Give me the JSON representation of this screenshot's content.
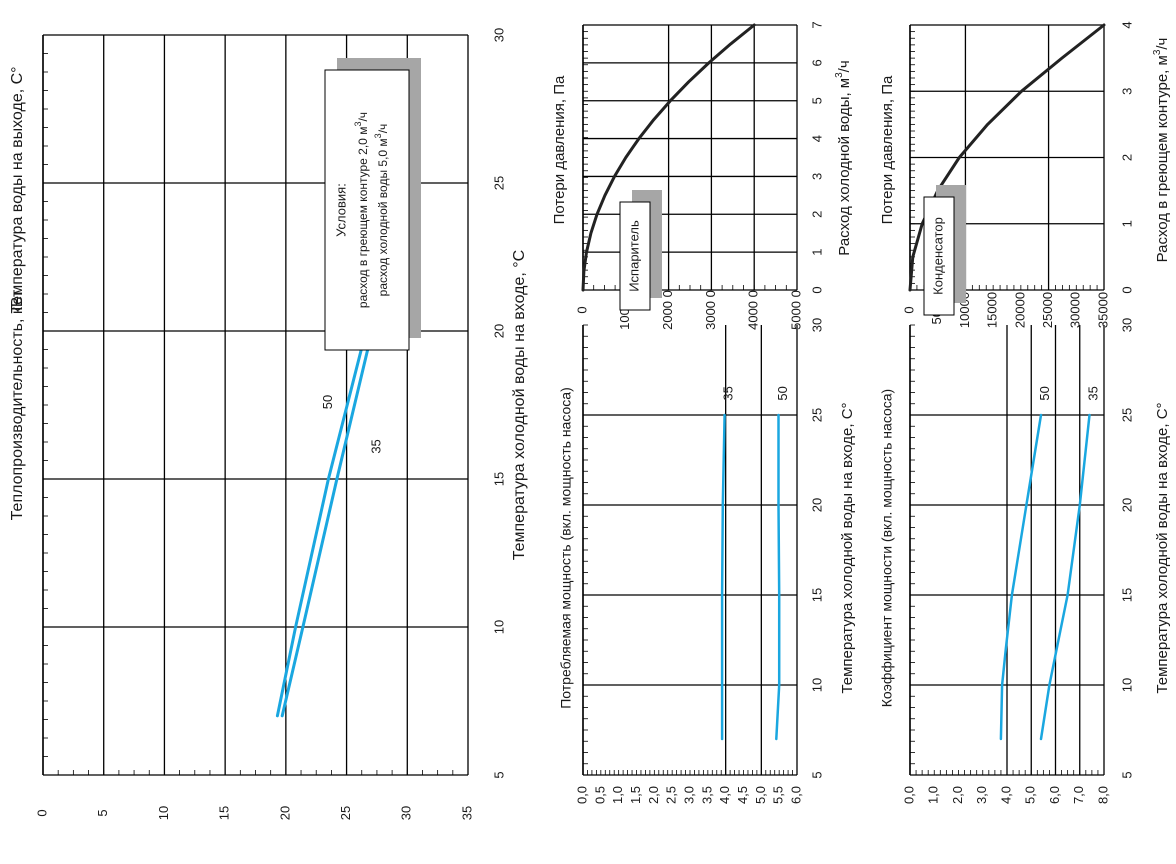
{
  "colors": {
    "line": "#1aa7e0",
    "curve": "#222222",
    "grid": "#000000",
    "shadow": "#a6a6a6"
  },
  "chart_data": [
    {
      "id": "heat",
      "type": "line",
      "xlabel": "Температура холодной воды на входе, °C",
      "ylabel": "Теплопроизводительность, кВт",
      "y2label": "Температура воды на выходе, С°",
      "xlim": [
        5,
        30
      ],
      "ylim": [
        0,
        35
      ],
      "xticks": [
        "5",
        "10",
        "15",
        "20",
        "25",
        "30"
      ],
      "yticks": [
        "0",
        "5",
        "10",
        "15",
        "20",
        "25",
        "30",
        "35"
      ],
      "series": [
        {
          "name": "35",
          "x": [
            7,
            10,
            15,
            20,
            25
          ],
          "y": [
            19.7,
            21.4,
            24.2,
            27.1,
            30.0
          ]
        },
        {
          "name": "50",
          "x": [
            7,
            10,
            15,
            20,
            25
          ],
          "y": [
            19.3,
            20.8,
            23.5,
            26.6,
            30.0
          ]
        }
      ],
      "labels": [
        {
          "text": "35",
          "x": 16.1,
          "y": 27.5
        },
        {
          "text": "50",
          "x": 17.6,
          "y": 23.5
        }
      ],
      "note": {
        "title": "Условия:",
        "line1": "расход в греющем контуре 2,0 м",
        "line1_unit": "/ч",
        "line2": "расход холодной воды 5,0 м",
        "line2_unit": "/ч",
        "sup": "3"
      }
    },
    {
      "id": "power",
      "type": "line",
      "xlabel": "Температура холодной воды на входе, С°",
      "ylabel": "Потребляемая мощность (вкл. мощность насоса)",
      "xlim": [
        5,
        30
      ],
      "ylim": [
        0,
        6
      ],
      "xticks": [
        "5",
        "10",
        "15",
        "20",
        "25",
        "30"
      ],
      "yticks": [
        "0,0",
        "0,5",
        "1,0",
        "1,5",
        "2,0",
        "2,5",
        "3,0",
        "3,5",
        "4,0",
        "4,5",
        "5,0",
        "5,5",
        "6,0"
      ],
      "series": [
        {
          "name": "50",
          "x": [
            7,
            10,
            15,
            20,
            25
          ],
          "y": [
            5.42,
            5.5,
            5.5,
            5.48,
            5.48
          ]
        },
        {
          "name": "35",
          "x": [
            7,
            10,
            15,
            20,
            25
          ],
          "y": [
            3.9,
            3.9,
            3.9,
            3.92,
            3.97
          ]
        }
      ],
      "labels": [
        {
          "text": "50",
          "x": 26.2,
          "y": 5.63
        },
        {
          "text": "35",
          "x": 26.2,
          "y": 4.1
        }
      ]
    },
    {
      "id": "cop",
      "type": "line",
      "xlabel": "Температура холодной воды на входе, С°",
      "ylabel": "Коэффициент мощности (вкл. мощность насоса)",
      "xlim": [
        5,
        30
      ],
      "ylim": [
        0,
        8
      ],
      "xticks": [
        "5",
        "10",
        "15",
        "20",
        "25",
        "30"
      ],
      "yticks": [
        "0,0",
        "1,0",
        "2,0",
        "3,0",
        "4,0",
        "5,0",
        "6,0",
        "7,0",
        "8,0"
      ],
      "series": [
        {
          "name": "35",
          "x": [
            7,
            10,
            13,
            15,
            20,
            25
          ],
          "y": [
            5.4,
            5.75,
            6.2,
            6.5,
            7.0,
            7.4
          ]
        },
        {
          "name": "50",
          "x": [
            7,
            10,
            12,
            15,
            20,
            25
          ],
          "y": [
            3.75,
            3.8,
            3.95,
            4.2,
            4.8,
            5.4
          ]
        }
      ],
      "labels": [
        {
          "text": "35",
          "x": 26.2,
          "y": 7.6
        },
        {
          "text": "50",
          "x": 26.2,
          "y": 5.6
        }
      ]
    },
    {
      "id": "evap",
      "type": "line",
      "xlabel": "Расход холодной воды, м",
      "xlabel_sup": "3",
      "xlabel_tail": "/ч",
      "ylabel": "Потери давления, Па",
      "xlim": [
        0,
        7
      ],
      "ylim": [
        0,
        5000
      ],
      "xticks": [
        "0",
        "1",
        "2",
        "3",
        "4",
        "5",
        "6",
        "7"
      ],
      "yticks": [
        "0",
        "1000 0",
        "2000 0",
        "3000 0",
        "4000 0",
        "5000 0"
      ],
      "series": [
        {
          "name": "",
          "x": [
            0,
            0.5,
            1,
            1.5,
            2,
            2.5,
            3,
            3.5,
            4,
            4.5,
            5,
            5.5,
            6,
            6.5,
            7
          ],
          "y": [
            0,
            20,
            82,
            184,
            327,
            511,
            735,
            1001,
            1307,
            1654,
            2041,
            2470,
            2940,
            3450,
            4000
          ]
        }
      ],
      "box_label": "Испаритель"
    },
    {
      "id": "cond",
      "type": "line",
      "xlabel": "Расход в греющем контуре, м",
      "xlabel_sup": "3",
      "xlabel_tail": "/ч",
      "ylabel": "Потери давления, Па",
      "xlim": [
        0,
        4
      ],
      "ylim": [
        0,
        35000
      ],
      "xticks": [
        "0",
        "1",
        "2",
        "3",
        "4"
      ],
      "yticks": [
        "0",
        "5000",
        "10000",
        "15000",
        "20000",
        "25000",
        "30000",
        "35000"
      ],
      "series": [
        {
          "name": "",
          "x": [
            0,
            0.5,
            1,
            1.5,
            2,
            2.5,
            3,
            3.5,
            4
          ],
          "y": [
            0,
            500,
            2200,
            5000,
            8900,
            14000,
            20100,
            27400,
            35000
          ]
        }
      ],
      "box_label": "Конденсатор"
    }
  ]
}
